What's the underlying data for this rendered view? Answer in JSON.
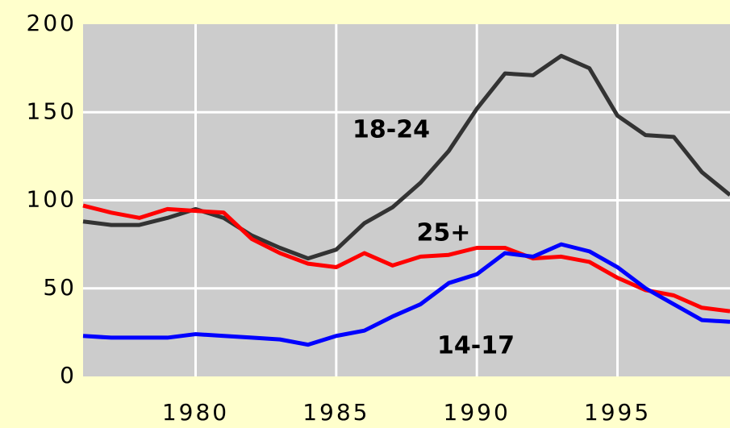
{
  "chart_data": {
    "type": "line",
    "x": [
      1976,
      1977,
      1978,
      1979,
      1980,
      1981,
      1982,
      1983,
      1984,
      1985,
      1986,
      1987,
      1988,
      1989,
      1990,
      1991,
      1992,
      1993,
      1994,
      1995,
      1996,
      1997,
      1998,
      1999
    ],
    "series": [
      {
        "name": "18-24",
        "color": "#333333",
        "values": [
          88,
          86,
          86,
          90,
          95,
          90,
          80,
          73,
          67,
          72,
          87,
          96,
          110,
          128,
          152,
          172,
          171,
          182,
          175,
          148,
          137,
          136,
          116,
          103
        ]
      },
      {
        "name": "25+",
        "color": "#ff0000",
        "values": [
          97,
          93,
          90,
          95,
          94,
          93,
          78,
          70,
          64,
          62,
          70,
          63,
          68,
          69,
          73,
          73,
          67,
          68,
          65,
          56,
          49,
          46,
          39,
          37
        ]
      },
      {
        "name": "14-17",
        "color": "#0000ff",
        "values": [
          23,
          22,
          22,
          22,
          24,
          23,
          22,
          21,
          18,
          23,
          26,
          34,
          41,
          53,
          58,
          70,
          68,
          75,
          71,
          62,
          50,
          41,
          32,
          31
        ]
      }
    ],
    "xlim": [
      1976,
      1999
    ],
    "xticks": [
      1980,
      1985,
      1990,
      1995
    ],
    "ylim": [
      0,
      200
    ],
    "yticks": [
      0,
      50,
      100,
      150,
      200
    ],
    "grid": true
  }
}
